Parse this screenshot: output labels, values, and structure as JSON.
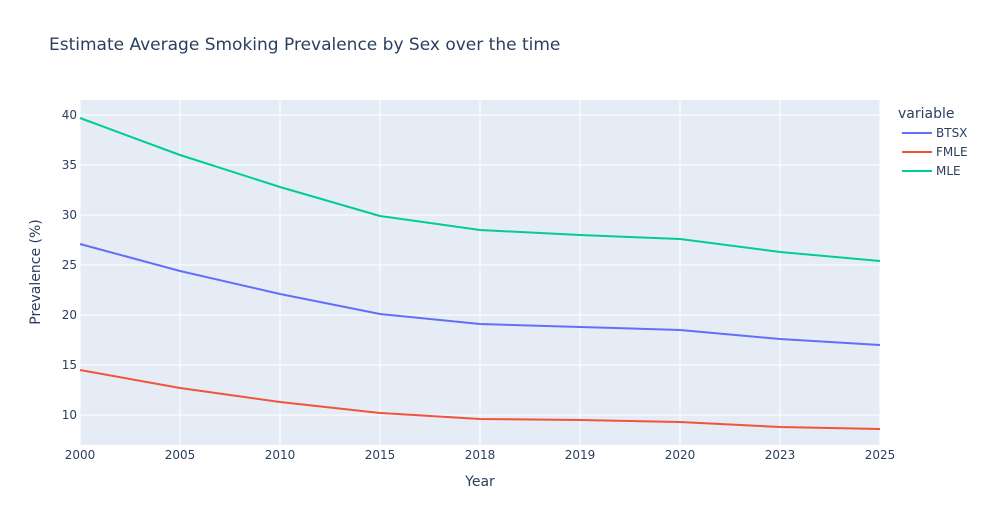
{
  "chart_data": {
    "type": "line",
    "title": "Estimate Average Smoking Prevalence by Sex over the time",
    "xlabel": "Year",
    "ylabel": "Prevalence (%)",
    "categories": [
      "2000",
      "2005",
      "2010",
      "2015",
      "2018",
      "2019",
      "2020",
      "2023",
      "2025"
    ],
    "y_ticks": [
      10,
      15,
      20,
      25,
      30,
      35,
      40
    ],
    "ylim": [
      7,
      41.5
    ],
    "grid": true,
    "legend_title": "variable",
    "legend_position": "top-right",
    "series": [
      {
        "name": "BTSX",
        "color": "#636efa",
        "values": [
          27.1,
          24.4,
          22.1,
          20.1,
          19.1,
          18.8,
          18.5,
          17.6,
          17.0
        ]
      },
      {
        "name": "FMLE",
        "color": "#ef553b",
        "values": [
          14.5,
          12.7,
          11.3,
          10.2,
          9.6,
          9.5,
          9.3,
          8.8,
          8.6
        ]
      },
      {
        "name": "MLE",
        "color": "#00cc96",
        "values": [
          39.7,
          36.0,
          32.8,
          29.9,
          28.5,
          28.0,
          27.6,
          26.3,
          25.4
        ]
      }
    ]
  }
}
